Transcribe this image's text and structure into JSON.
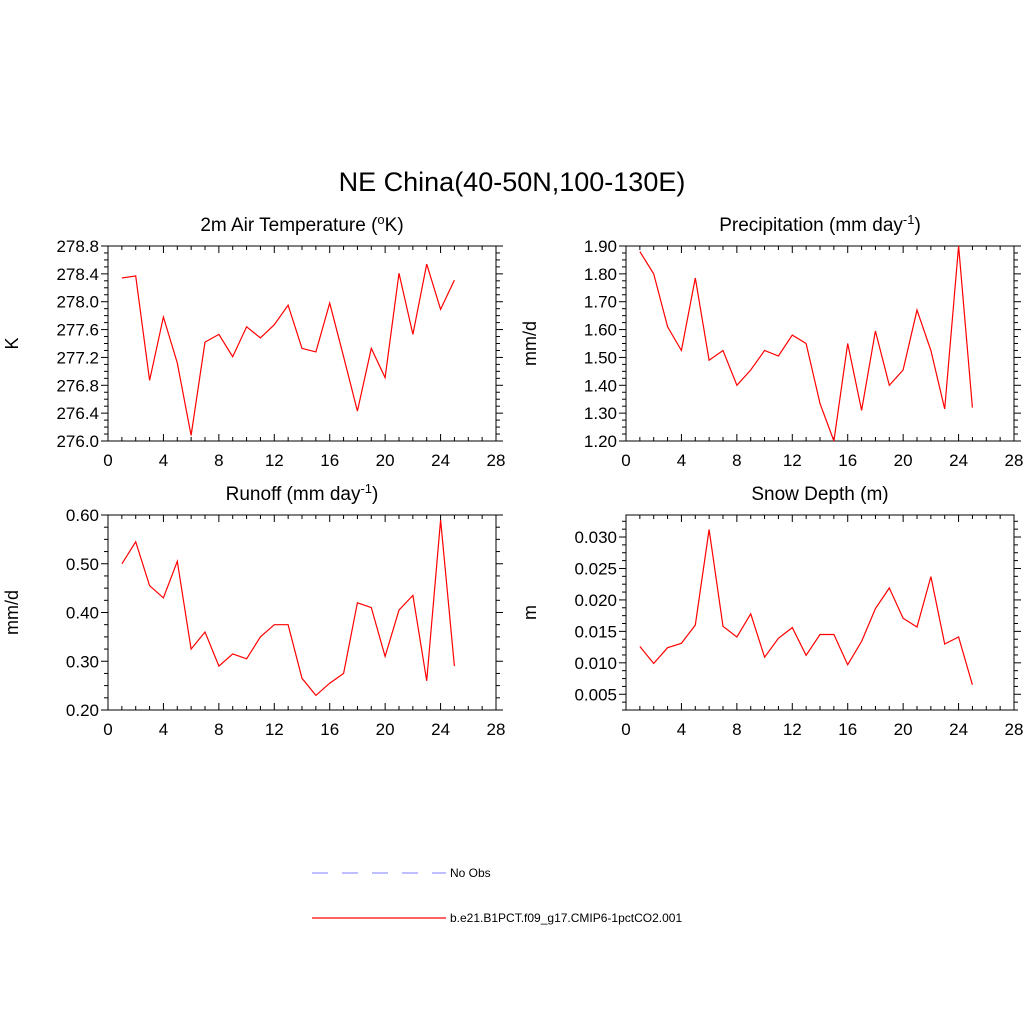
{
  "figure": {
    "title": "NE China(40-50N,100-130E)"
  },
  "legend": [
    {
      "label": "No Obs",
      "color": "#9999ff",
      "dashed": true
    },
    {
      "label": "b.e21.B1PCT.f09_g17.CMIP6-1pctCO2.001",
      "color": "#ff0000",
      "dashed": false
    }
  ],
  "chart_data": [
    {
      "type": "line",
      "title": "2m Air Temperature (°K)",
      "title_parts": {
        "pre": "2m Air Temperature (",
        "sup": "o",
        "post": "K)"
      },
      "ylabel": "K",
      "xlim": [
        0,
        28
      ],
      "ylim": [
        276.0,
        278.8
      ],
      "xticks": [
        0,
        4,
        8,
        12,
        16,
        20,
        24,
        28
      ],
      "yticks": [
        276.0,
        276.4,
        276.8,
        277.2,
        277.6,
        278.0,
        278.4,
        278.8
      ],
      "ytick_labels": [
        "276.0",
        "276.4",
        "276.8",
        "277.2",
        "277.6",
        "278.0",
        "278.4",
        "278.8"
      ],
      "grid": false,
      "series": [
        {
          "name": "b.e21.B1PCT.f09_g17.CMIP6-1pctCO2.001",
          "color": "#ff0000",
          "x": [
            1,
            2,
            3,
            4,
            5,
            6,
            7,
            8,
            9,
            10,
            11,
            12,
            13,
            14,
            15,
            16,
            17,
            18,
            19,
            20,
            21,
            22,
            23,
            24,
            25
          ],
          "y": [
            278.34,
            278.37,
            276.87,
            277.78,
            277.12,
            276.08,
            277.42,
            277.53,
            277.21,
            277.64,
            277.48,
            277.67,
            277.95,
            277.33,
            277.28,
            277.98,
            277.21,
            276.43,
            277.33,
            276.91,
            278.41,
            277.53,
            278.54,
            277.89,
            278.31
          ]
        }
      ]
    },
    {
      "type": "line",
      "title": "Precipitation (mm day-1)",
      "title_parts": {
        "pre": "Precipitation (mm day",
        "sup": "-1",
        "post": ")"
      },
      "ylabel": "mm/d",
      "xlim": [
        0,
        28
      ],
      "ylim": [
        1.2,
        1.9
      ],
      "xticks": [
        0,
        4,
        8,
        12,
        16,
        20,
        24,
        28
      ],
      "yticks": [
        1.2,
        1.3,
        1.4,
        1.5,
        1.6,
        1.7,
        1.8,
        1.9
      ],
      "ytick_labels": [
        "1.20",
        "1.30",
        "1.40",
        "1.50",
        "1.60",
        "1.70",
        "1.80",
        "1.90"
      ],
      "grid": false,
      "series": [
        {
          "name": "b.e21.B1PCT.f09_g17.CMIP6-1pctCO2.001",
          "color": "#ff0000",
          "x": [
            1,
            2,
            3,
            4,
            5,
            6,
            7,
            8,
            9,
            10,
            11,
            12,
            13,
            14,
            15,
            16,
            17,
            18,
            19,
            20,
            21,
            22,
            23,
            24,
            25
          ],
          "y": [
            1.88,
            1.8,
            1.61,
            1.525,
            1.785,
            1.49,
            1.525,
            1.4,
            1.455,
            1.525,
            1.505,
            1.58,
            1.55,
            1.335,
            1.2,
            1.55,
            1.31,
            1.595,
            1.4,
            1.455,
            1.67,
            1.525,
            1.315,
            1.9,
            1.32
          ]
        }
      ]
    },
    {
      "type": "line",
      "title": "Runoff (mm day-1)",
      "title_parts": {
        "pre": "Runoff (mm day",
        "sup": "-1",
        "post": ")"
      },
      "ylabel": "mm/d",
      "xlim": [
        0,
        28
      ],
      "ylim": [
        0.2,
        0.6
      ],
      "xticks": [
        0,
        4,
        8,
        12,
        16,
        20,
        24,
        28
      ],
      "yticks": [
        0.2,
        0.3,
        0.4,
        0.5,
        0.6
      ],
      "ytick_labels": [
        "0.20",
        "0.30",
        "0.40",
        "0.50",
        "0.60"
      ],
      "grid": false,
      "series": [
        {
          "name": "b.e21.B1PCT.f09_g17.CMIP6-1pctCO2.001",
          "color": "#ff0000",
          "x": [
            1,
            2,
            3,
            4,
            5,
            6,
            7,
            8,
            9,
            10,
            11,
            12,
            13,
            14,
            15,
            16,
            17,
            18,
            19,
            20,
            21,
            22,
            23,
            24,
            25
          ],
          "y": [
            0.5,
            0.545,
            0.455,
            0.43,
            0.505,
            0.325,
            0.36,
            0.29,
            0.315,
            0.305,
            0.35,
            0.375,
            0.375,
            0.265,
            0.23,
            0.255,
            0.275,
            0.42,
            0.41,
            0.31,
            0.405,
            0.435,
            0.26,
            0.59,
            0.29
          ]
        }
      ]
    },
    {
      "type": "line",
      "title": "Snow Depth (m)",
      "title_parts": {
        "pre": "Snow Depth (m)",
        "sup": "",
        "post": ""
      },
      "ylabel": "m",
      "xlim": [
        0,
        28
      ],
      "ylim": [
        0.0025,
        0.0335
      ],
      "xticks": [
        0,
        4,
        8,
        12,
        16,
        20,
        24,
        28
      ],
      "yticks": [
        0.005,
        0.01,
        0.015,
        0.02,
        0.025,
        0.03
      ],
      "ytick_labels": [
        "0.005",
        "0.010",
        "0.015",
        "0.020",
        "0.025",
        "0.030"
      ],
      "grid": false,
      "series": [
        {
          "name": "b.e21.B1PCT.f09_g17.CMIP6-1pctCO2.001",
          "color": "#ff0000",
          "x": [
            1,
            2,
            3,
            4,
            5,
            6,
            7,
            8,
            9,
            10,
            11,
            12,
            13,
            14,
            15,
            16,
            17,
            18,
            19,
            20,
            21,
            22,
            23,
            24,
            25
          ],
          "y": [
            0.0126,
            0.0099,
            0.0124,
            0.0131,
            0.016,
            0.0312,
            0.0158,
            0.0141,
            0.0178,
            0.0109,
            0.0139,
            0.0156,
            0.0112,
            0.0145,
            0.0145,
            0.0097,
            0.0134,
            0.0186,
            0.0219,
            0.0171,
            0.0157,
            0.0237,
            0.013,
            0.0141,
            0.0065
          ]
        }
      ]
    }
  ]
}
